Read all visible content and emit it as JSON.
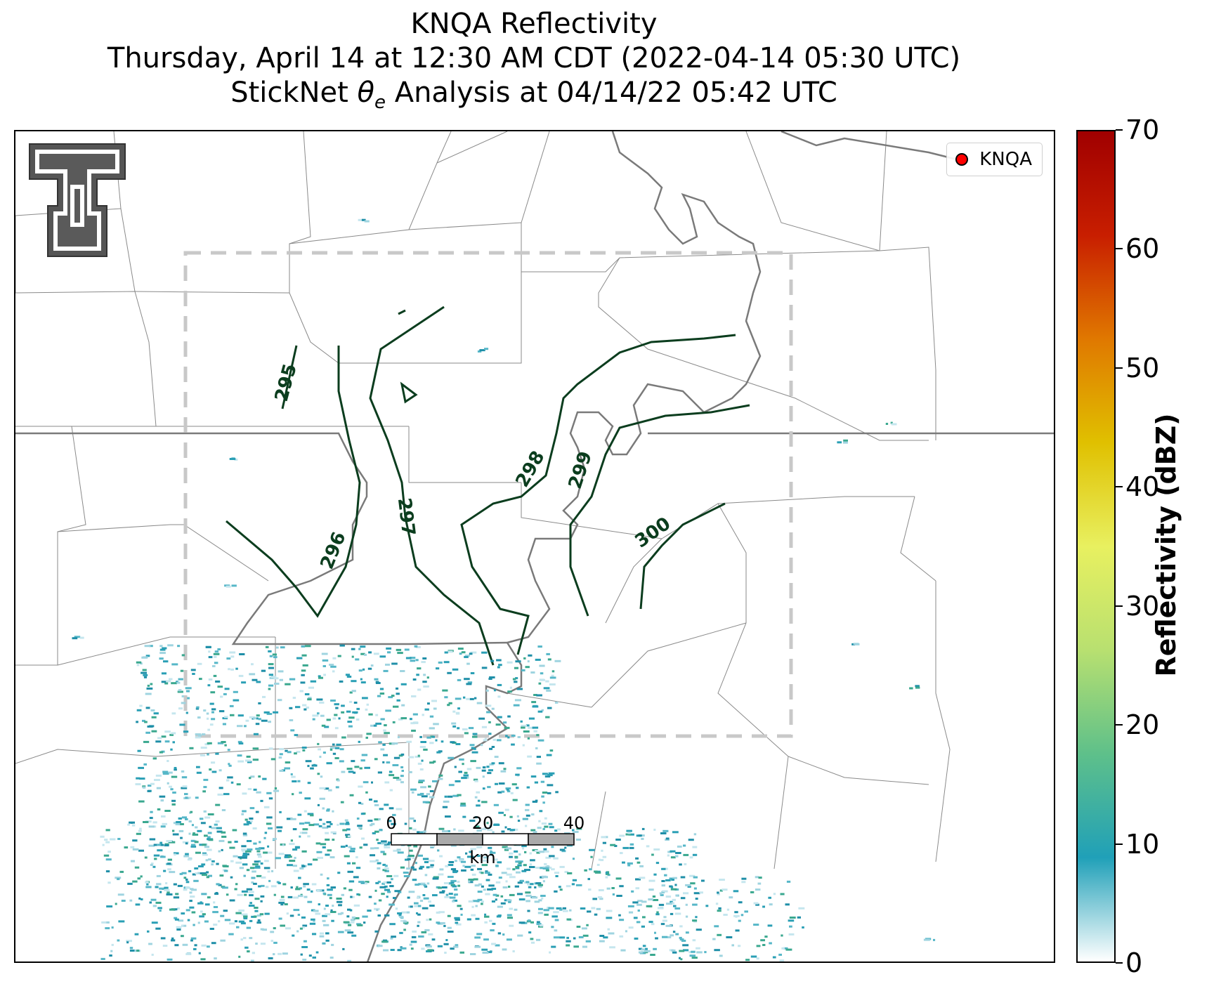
{
  "title": {
    "line1": "KNQA Reflectivity",
    "line2": "Thursday, April 14 at 12:30 AM CDT (2022-04-14 05:30 UTC)",
    "line3_prefix": "StickNet ",
    "line3_symbol": "θ",
    "line3_sub": "e",
    "line3_suffix": " Analysis at 04/14/22 05:42 UTC"
  },
  "legend": {
    "label": "KNQA",
    "marker_color": "#ff0000"
  },
  "logo": {
    "icon": "double-t-logo"
  },
  "contours": {
    "color": "#0b3d1e",
    "levels": [
      "295",
      "296",
      "297",
      "298",
      "299",
      "300"
    ]
  },
  "analysis_box": {
    "style": "dashed",
    "color": "#c8c8c8"
  },
  "scale_bar": {
    "labels": [
      "0",
      "20",
      "40"
    ],
    "unit": "km"
  },
  "colorbar": {
    "title": "Reflectivity (dBZ)",
    "ticks": [
      "0",
      "10",
      "20",
      "30",
      "40",
      "50",
      "60",
      "70"
    ],
    "min": 0,
    "max": 70,
    "stops": [
      "#ffffff",
      "#20a0b8",
      "#5ec08a",
      "#b8e070",
      "#e8f060",
      "#e0c000",
      "#e07800",
      "#c81e00",
      "#a00000"
    ]
  }
}
